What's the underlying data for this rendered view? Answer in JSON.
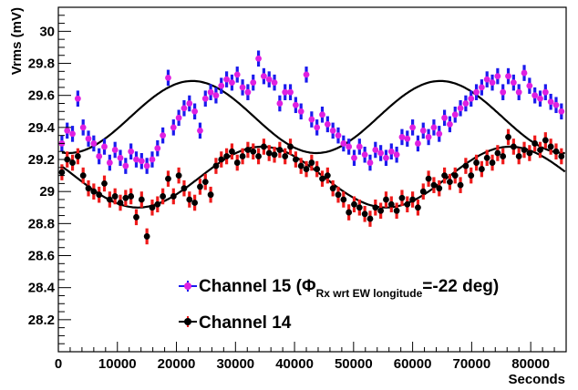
{
  "chart_data": {
    "type": "scatter",
    "title": "",
    "xlabel": "Seconds",
    "ylabel": "Vrms (mV)",
    "xlim": [
      0,
      86000
    ],
    "ylim": [
      28.0,
      30.15
    ],
    "x_ticks": [
      0,
      10000,
      20000,
      30000,
      40000,
      50000,
      60000,
      70000,
      80000
    ],
    "x_tick_labels": [
      "0",
      "10000",
      "20000",
      "30000",
      "40000",
      "50000",
      "60000",
      "70000",
      "80000"
    ],
    "y_ticks": [
      28.2,
      28.4,
      28.6,
      28.8,
      29.0,
      29.2,
      29.4,
      29.6,
      29.8,
      30.0
    ],
    "y_tick_labels": [
      "28.2",
      "28.4",
      "28.6",
      "28.8",
      "29",
      "29.2",
      "29.4",
      "29.6",
      "29.8",
      "30"
    ],
    "grid": false,
    "legend_position": "bottom-center",
    "legend": {
      "ch15_main": "Channel 15 (",
      "ch15_phi": "Φ",
      "ch15_sub": "Rx wrt EW longitude",
      "ch15_tail": "=-22 deg)",
      "ch14": "Channel 14"
    },
    "series": [
      {
        "name": "Channel 15",
        "marker_color": "#e020e0",
        "error_color": "#1a1aee",
        "fit_color": "#000000",
        "fit": {
          "mean": 29.465,
          "amplitude": 0.225,
          "period": 42000,
          "phase_x": 12200
        },
        "error": 0.05,
        "x": [
          600,
          1500,
          2400,
          3300,
          4200,
          5100,
          6000,
          6900,
          7800,
          8700,
          9600,
          10500,
          11400,
          12300,
          13200,
          14100,
          15000,
          15900,
          16800,
          17700,
          18600,
          19500,
          20400,
          21300,
          22200,
          23100,
          24000,
          24900,
          25800,
          26700,
          27600,
          28500,
          29400,
          30300,
          31200,
          32100,
          33000,
          33900,
          34800,
          35700,
          36600,
          37500,
          38400,
          39300,
          40200,
          41100,
          42000,
          42900,
          43800,
          44700,
          45600,
          46500,
          47400,
          48300,
          49200,
          50100,
          51000,
          51900,
          52800,
          53700,
          54600,
          55500,
          56400,
          57300,
          58200,
          59100,
          60000,
          60900,
          61800,
          62700,
          63600,
          64500,
          65400,
          66300,
          67200,
          68100,
          69000,
          69900,
          70800,
          71700,
          72600,
          73500,
          74400,
          75300,
          76200,
          77100,
          78000,
          78900,
          79800,
          80700,
          81600,
          82500,
          83400,
          84300,
          85200
        ],
        "y": [
          29.3,
          29.38,
          29.36,
          29.58,
          29.4,
          29.33,
          29.3,
          29.22,
          29.28,
          29.18,
          29.26,
          29.21,
          29.16,
          29.25,
          29.2,
          29.19,
          29.16,
          29.2,
          29.27,
          29.35,
          29.71,
          29.4,
          29.46,
          29.52,
          29.55,
          29.5,
          29.38,
          29.58,
          29.62,
          29.6,
          29.66,
          29.7,
          29.68,
          29.73,
          29.65,
          29.62,
          29.68,
          29.83,
          29.72,
          29.7,
          29.68,
          29.55,
          29.62,
          29.62,
          29.54,
          29.5,
          29.73,
          29.45,
          29.4,
          29.48,
          29.42,
          29.38,
          29.35,
          29.3,
          29.28,
          29.21,
          29.28,
          29.23,
          29.18,
          29.26,
          29.24,
          29.21,
          29.25,
          29.23,
          29.34,
          29.33,
          29.4,
          29.3,
          29.38,
          29.34,
          29.4,
          29.36,
          29.46,
          29.42,
          29.48,
          29.52,
          29.55,
          29.58,
          29.62,
          29.65,
          29.7,
          29.68,
          29.72,
          29.62,
          29.72,
          29.68,
          29.62,
          29.74,
          29.66,
          29.6,
          29.58,
          29.62,
          29.56,
          29.54,
          29.5
        ]
      },
      {
        "name": "Channel 14",
        "marker_color": "#000000",
        "error_color": "#ee1a1a",
        "fit_color": "#000000",
        "fit": {
          "mean": 29.09,
          "amplitude": 0.19,
          "period": 42000,
          "phase_x": 24000
        },
        "error": 0.05,
        "x": [
          600,
          1500,
          2400,
          3300,
          4200,
          5100,
          6000,
          6900,
          7800,
          8700,
          9600,
          10500,
          11400,
          12300,
          13200,
          14100,
          15000,
          15900,
          16800,
          17700,
          18600,
          19500,
          20400,
          21300,
          22200,
          23100,
          24000,
          24900,
          25800,
          26700,
          27600,
          28500,
          29400,
          30300,
          31200,
          32100,
          33000,
          33900,
          34800,
          35700,
          36600,
          37500,
          38400,
          39300,
          40200,
          41100,
          42000,
          42900,
          43800,
          44700,
          45600,
          46500,
          47400,
          48300,
          49200,
          50100,
          51000,
          51900,
          52800,
          53700,
          54600,
          55500,
          56400,
          57300,
          58200,
          59100,
          60000,
          60900,
          61800,
          62700,
          63600,
          64500,
          65400,
          66300,
          67200,
          68100,
          69000,
          69900,
          70800,
          71700,
          72600,
          73500,
          74400,
          75300,
          76200,
          77100,
          78000,
          78900,
          79800,
          80700,
          81600,
          82500,
          83400,
          84300,
          85200
        ],
        "y": [
          29.12,
          29.2,
          29.18,
          29.22,
          29.1,
          29.02,
          29.0,
          28.98,
          29.05,
          28.95,
          28.97,
          28.93,
          28.96,
          28.97,
          28.84,
          28.95,
          28.72,
          28.9,
          28.92,
          28.97,
          29.08,
          28.97,
          29.1,
          29.02,
          28.95,
          28.93,
          29.03,
          29.06,
          28.98,
          29.16,
          29.2,
          29.22,
          29.25,
          29.18,
          29.22,
          29.26,
          29.25,
          29.22,
          29.28,
          29.24,
          29.23,
          29.26,
          29.22,
          29.28,
          29.2,
          29.16,
          29.14,
          29.18,
          29.14,
          29.08,
          29.1,
          29.02,
          28.98,
          28.95,
          28.87,
          28.92,
          28.9,
          28.86,
          28.83,
          28.9,
          28.88,
          28.95,
          28.92,
          28.88,
          28.96,
          28.92,
          28.95,
          28.9,
          29.0,
          29.08,
          29.04,
          29.02,
          29.1,
          29.06,
          29.1,
          29.04,
          29.16,
          29.1,
          29.18,
          29.14,
          29.21,
          29.18,
          29.24,
          29.22,
          29.34,
          29.28,
          29.22,
          29.26,
          29.24,
          29.3,
          29.26,
          29.32,
          29.28,
          29.25,
          29.22
        ]
      }
    ]
  }
}
